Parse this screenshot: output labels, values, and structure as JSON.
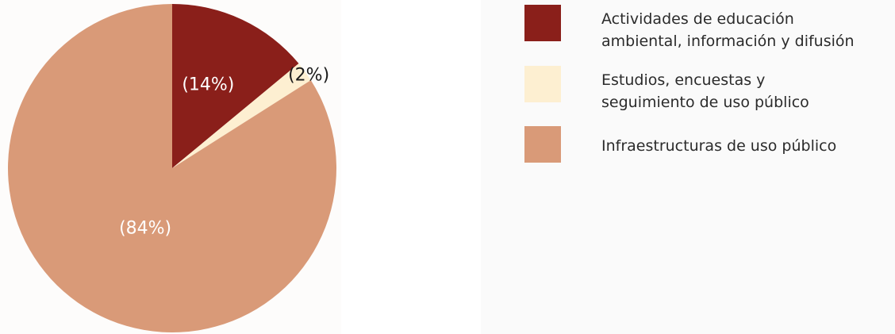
{
  "chart_data": {
    "type": "pie",
    "title": "",
    "start_angle_deg": 0,
    "direction": "clockwise",
    "slices": [
      {
        "name": "Actividades de educación\nambiental, información y difusión",
        "value": 14,
        "label": "(14%)",
        "color": "#8a1f1a",
        "label_color": "#ffffff"
      },
      {
        "name": "Estudios, encuestas y\nseguimiento de uso público",
        "value": 2,
        "label": "(2%)",
        "color": "#fdefd1",
        "label_color": "#1a1a1a"
      },
      {
        "name": "Infraestructuras de uso público",
        "value": 84,
        "label": "(84%)",
        "color": "#d99a78",
        "label_color": "#ffffff"
      }
    ],
    "legend": "right"
  }
}
